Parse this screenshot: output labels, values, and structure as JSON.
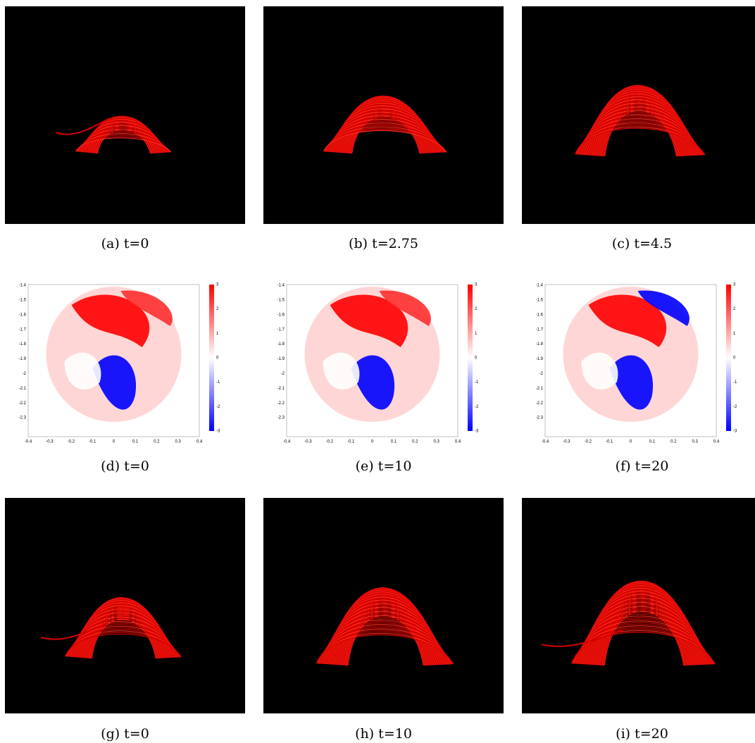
{
  "panels": [
    {
      "caption": "(a) t=0"
    },
    {
      "caption": "(b) t=2.75"
    },
    {
      "caption": "(c) t=4.5"
    },
    {
      "caption": "(d) t=0"
    },
    {
      "caption": "(e) t=10"
    },
    {
      "caption": "(f) t=20"
    },
    {
      "caption": "(g) t=0"
    },
    {
      "caption": "(h) t=10"
    },
    {
      "caption": "(i) t=20"
    }
  ],
  "heatmap_axes": {
    "yticks": [
      "-1.4",
      "-1.5",
      "-1.6",
      "-1.7",
      "-1.8",
      "-1.9",
      "-2",
      "-2.1",
      "-2.2",
      "-2.3"
    ],
    "xticks": [
      "-0.4",
      "-0.3",
      "-0.2",
      "-0.1",
      "0",
      "0.1",
      "0.2",
      "0.3",
      "0.4"
    ],
    "colorbar_ticks": [
      "3",
      "2",
      "1",
      "0",
      "-1",
      "-2",
      "-3"
    ]
  }
}
